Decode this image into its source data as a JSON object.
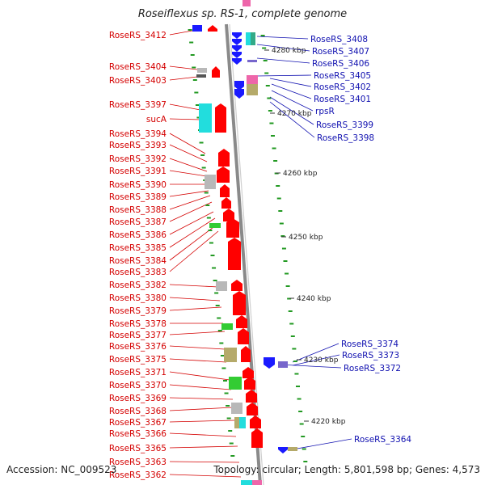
{
  "title": "Roseiflexus sp. RS-1, complete genome",
  "footer": {
    "accession": "Accession: NC_009523",
    "summary": "Topology: circular; Length: 5,801,598 bp; Genes: 4,573"
  },
  "ticks": [
    "4280 kbp",
    "4270 kbp",
    "4260 kbp",
    "4250 kbp",
    "4240 kbp",
    "4230 kbp",
    "4220 kbp"
  ],
  "left_labels": [
    "RoseRS_3412",
    "RoseRS_3404",
    "RoseRS_3403",
    "RoseRS_3397",
    "sucA",
    "RoseRS_3394",
    "RoseRS_3393",
    "RoseRS_3392",
    "RoseRS_3391",
    "RoseRS_3390",
    "RoseRS_3389",
    "RoseRS_3388",
    "RoseRS_3387",
    "RoseRS_3386",
    "RoseRS_3385",
    "RoseRS_3384",
    "RoseRS_3383",
    "RoseRS_3382",
    "RoseRS_3380",
    "RoseRS_3379",
    "RoseRS_3378",
    "RoseRS_3377",
    "RoseRS_3376",
    "RoseRS_3375",
    "RoseRS_3371",
    "RoseRS_3370",
    "RoseRS_3369",
    "RoseRS_3368",
    "RoseRS_3367",
    "RoseRS_3366",
    "RoseRS_3365",
    "RoseRS_3363",
    "RoseRS_3362"
  ],
  "right_labels": [
    "RoseRS_3408",
    "RoseRS_3407",
    "RoseRS_3406",
    "RoseRS_3405",
    "RoseRS_3402",
    "RoseRS_3401",
    "rpsR",
    "RoseRS_3399",
    "RoseRS_3398",
    "RoseRS_3374",
    "RoseRS_3373",
    "RoseRS_3372",
    "RoseRS_3364"
  ],
  "colors": {
    "forward_label": "#d40000",
    "reverse_label": "#1010b0",
    "forward_gene": "#ff0000",
    "reverse_gene": "#1a1aff",
    "backbone": "#8a8a8a",
    "marker": "#229922",
    "gene_cyan": "#22dddd",
    "gene_gray": "#b8b8b8",
    "gene_green": "#33cc33",
    "gene_olive": "#b5aa6a",
    "gene_pink": "#ee66aa",
    "gene_purple": "#7766cc",
    "gene_teal": "#33aa88"
  }
}
